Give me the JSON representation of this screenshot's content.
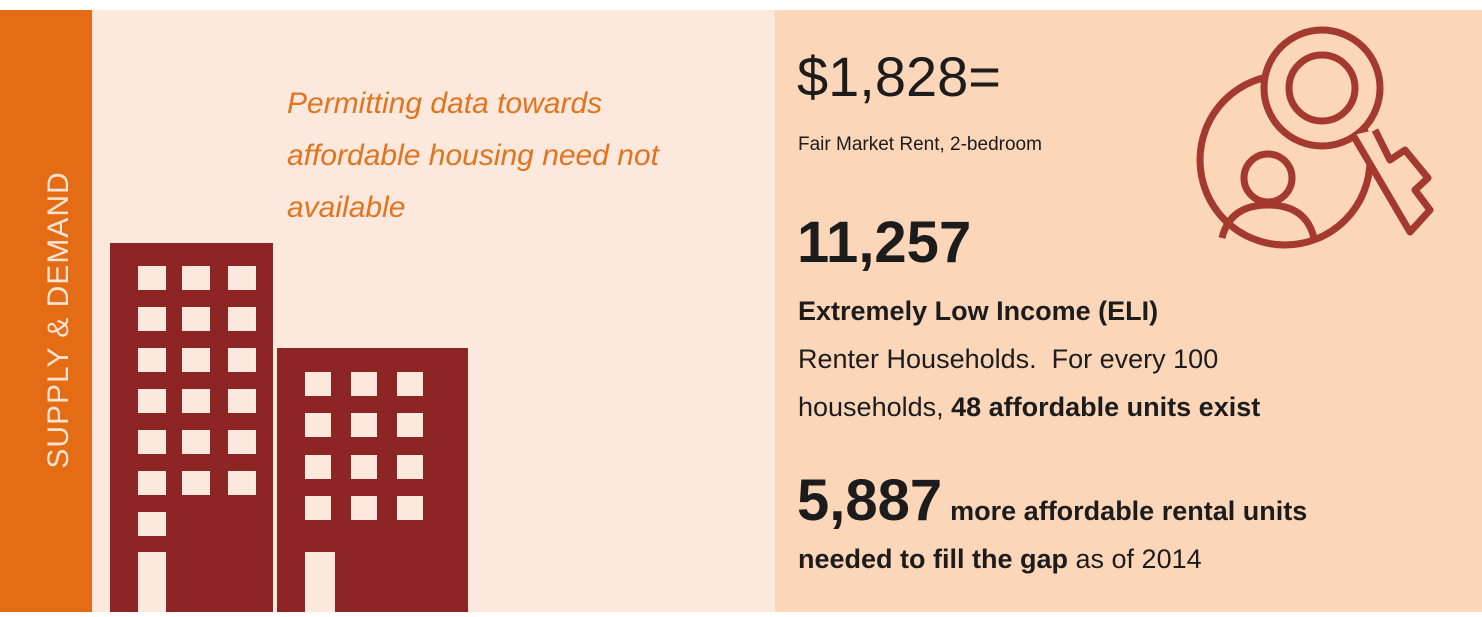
{
  "sidebar": {
    "label": "SUPPLY & DEMAND"
  },
  "left_panel": {
    "note_lines": [
      "Permitting data towards",
      "affordable housing need not",
      "available"
    ]
  },
  "right_panel": {
    "rent": {
      "value": "$1,828=",
      "label": "Fair Market Rent, 2-bedroom"
    },
    "eli": {
      "count": "11,257",
      "heading": "Extremely Low Income (ELI)",
      "line1": "Renter Households.  For every 100",
      "line2_prefix": "households, ",
      "line2_bold": "48 affordable units exist"
    },
    "gap": {
      "count": "5,887",
      "line1_bold": "more affordable rental units",
      "line2_bold": "needed to fill the gap",
      "line2_rest": " as of 2014"
    }
  }
}
